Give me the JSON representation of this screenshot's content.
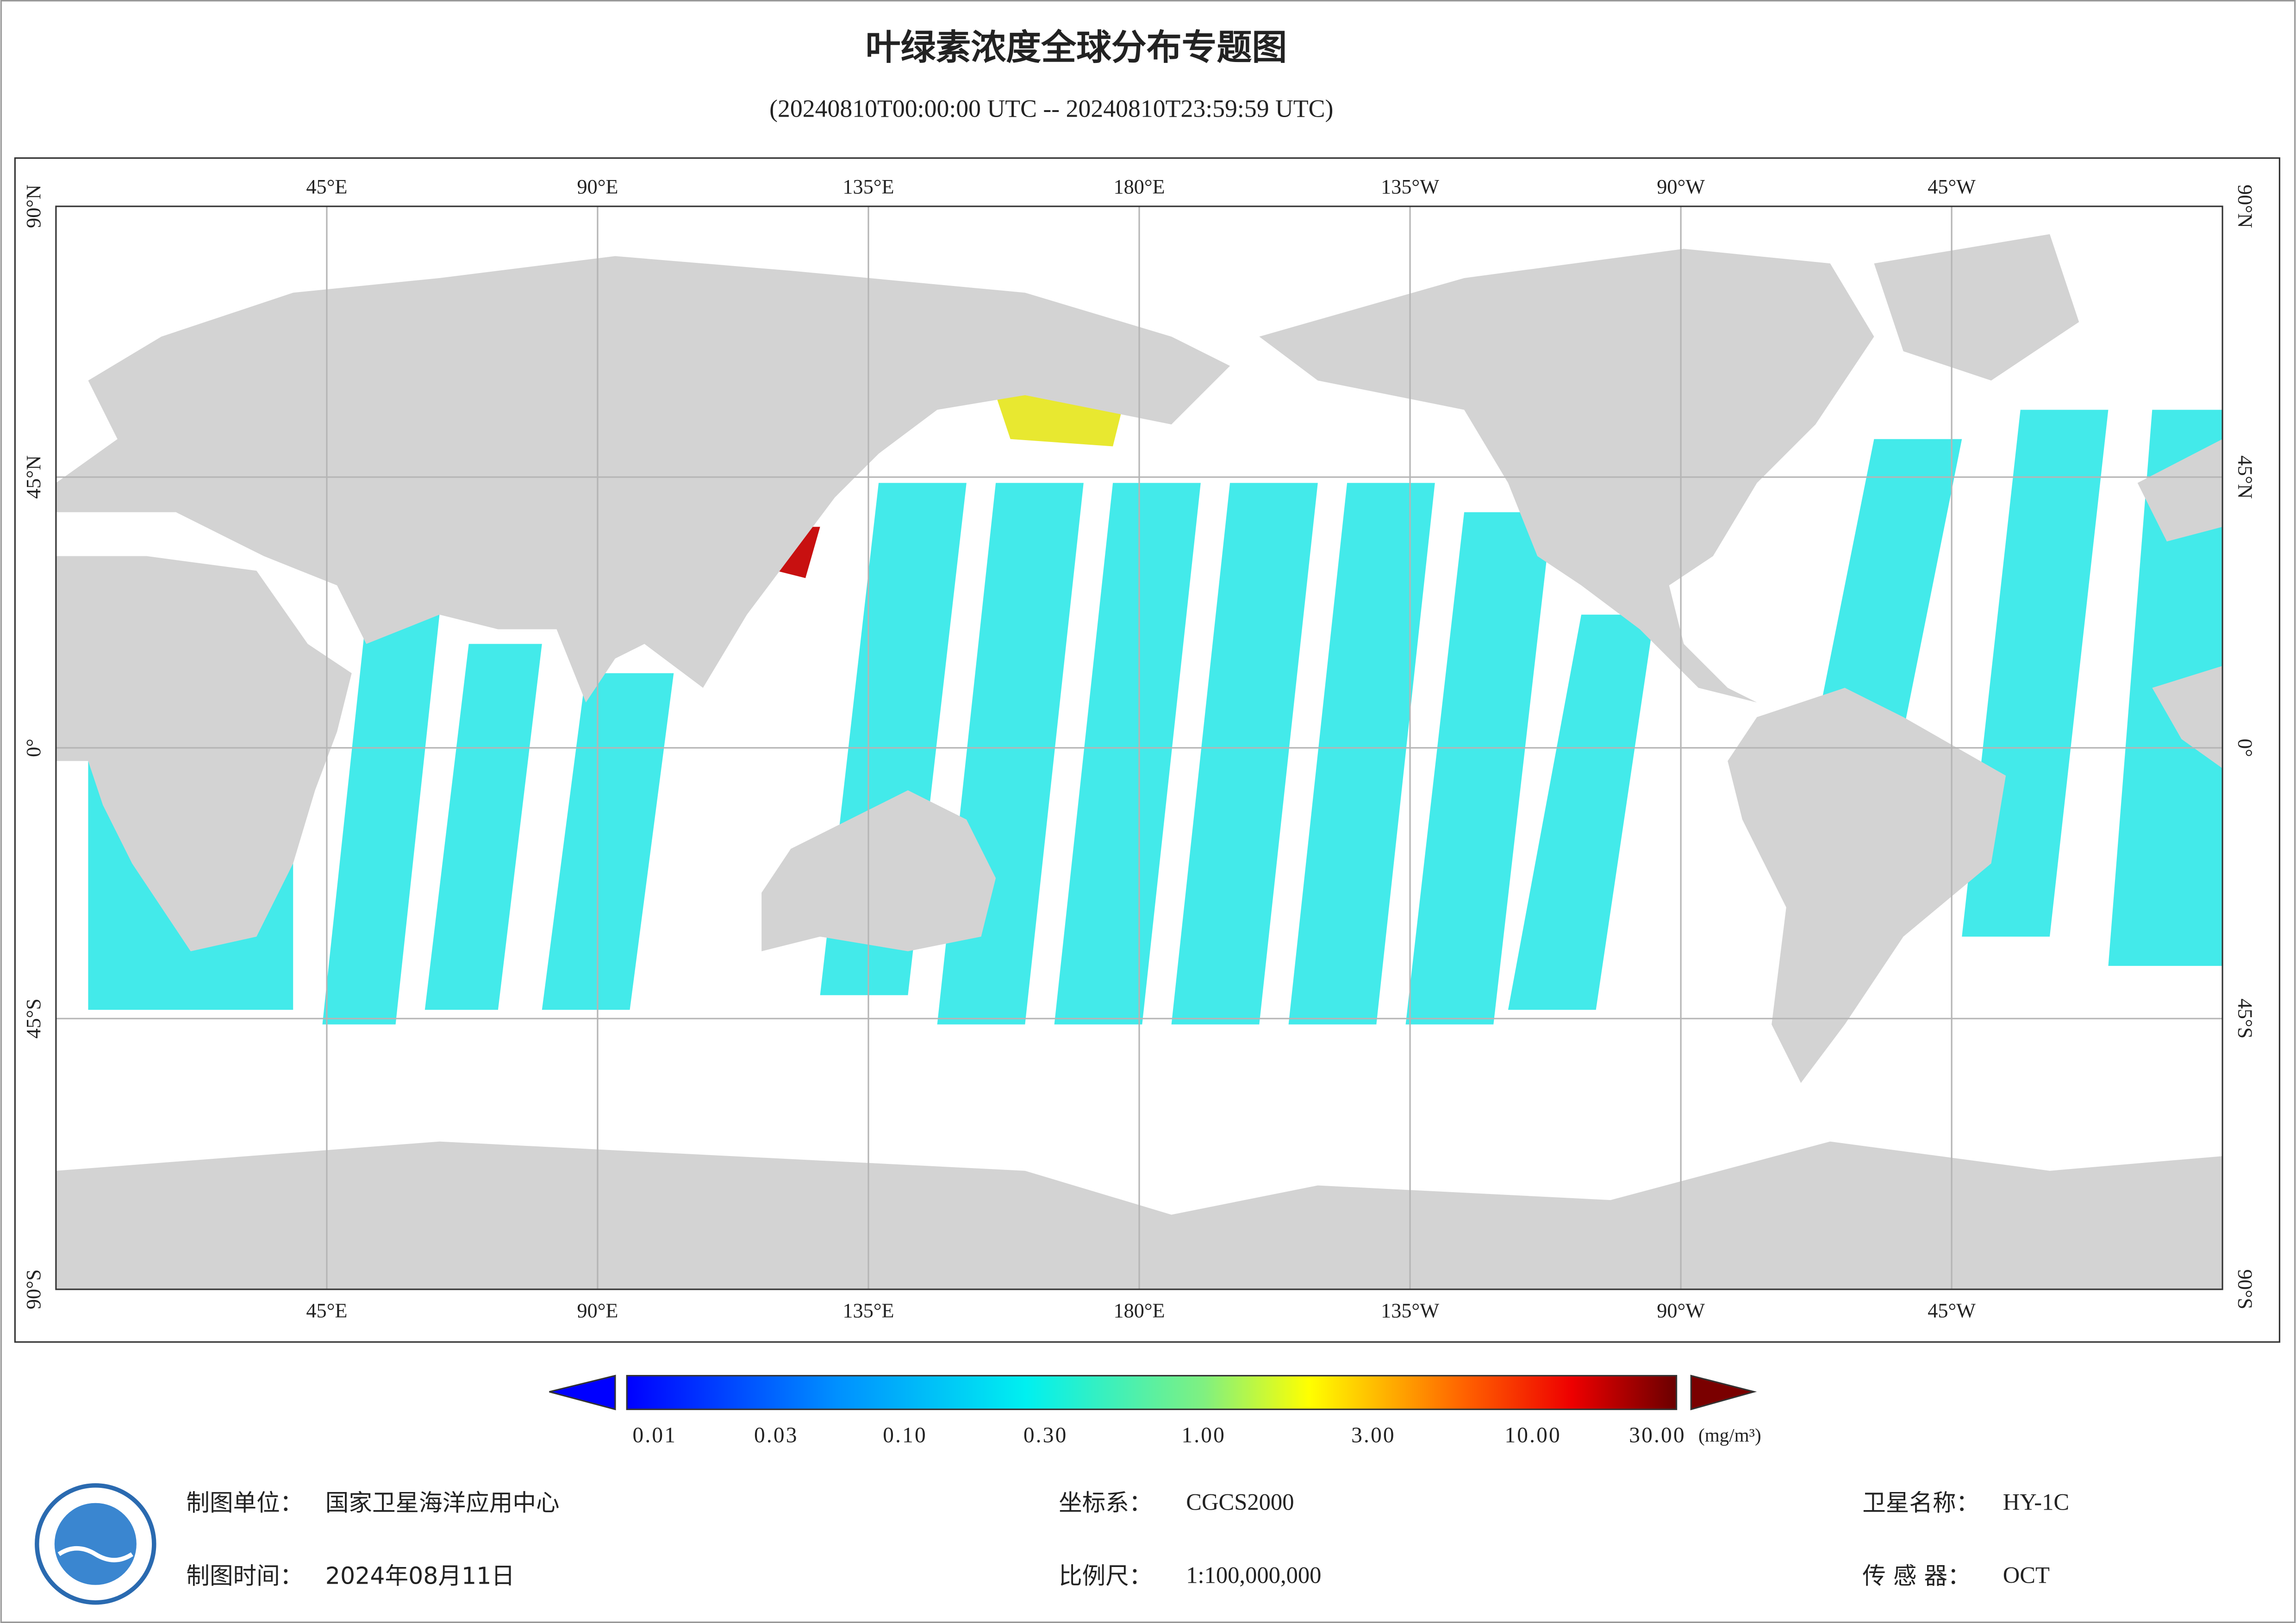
{
  "title": "叶绿素浓度全球分布专题图",
  "subtitle": "(20240810T00:00:00 UTC -- 20240810T23:59:59 UTC)",
  "map": {
    "lon_labels": [
      "45°E",
      "90°E",
      "135°E",
      "180°E",
      "135°W",
      "90°W",
      "45°W"
    ],
    "lat_labels": [
      "90°N",
      "45°N",
      "0°",
      "45°S",
      "90°S"
    ]
  },
  "colorbar": {
    "ticks": [
      "0.01",
      "0.03",
      "0.10",
      "0.30",
      "1.00",
      "3.00",
      "10.00",
      "30.00"
    ],
    "unit": "(mg/m³)"
  },
  "footer": {
    "agency_label": "制图单位：",
    "agency": "国家卫星海洋应用中心",
    "date_label": "制图时间：",
    "date": "2024年08月11日",
    "crs_label": "坐标系：",
    "crs": "CGCS2000",
    "scale_label": "比例尺：",
    "scale": "1:100,000,000",
    "satellite_label": "卫星名称：",
    "satellite": "HY-1C",
    "sensor_label": "传 感 器：",
    "sensor": "OCT"
  }
}
